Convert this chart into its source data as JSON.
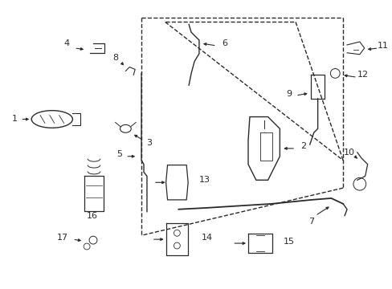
{
  "bg_color": "#ffffff",
  "lc": "#2a2a2a",
  "figsize": [
    4.89,
    3.6
  ],
  "dpi": 100
}
